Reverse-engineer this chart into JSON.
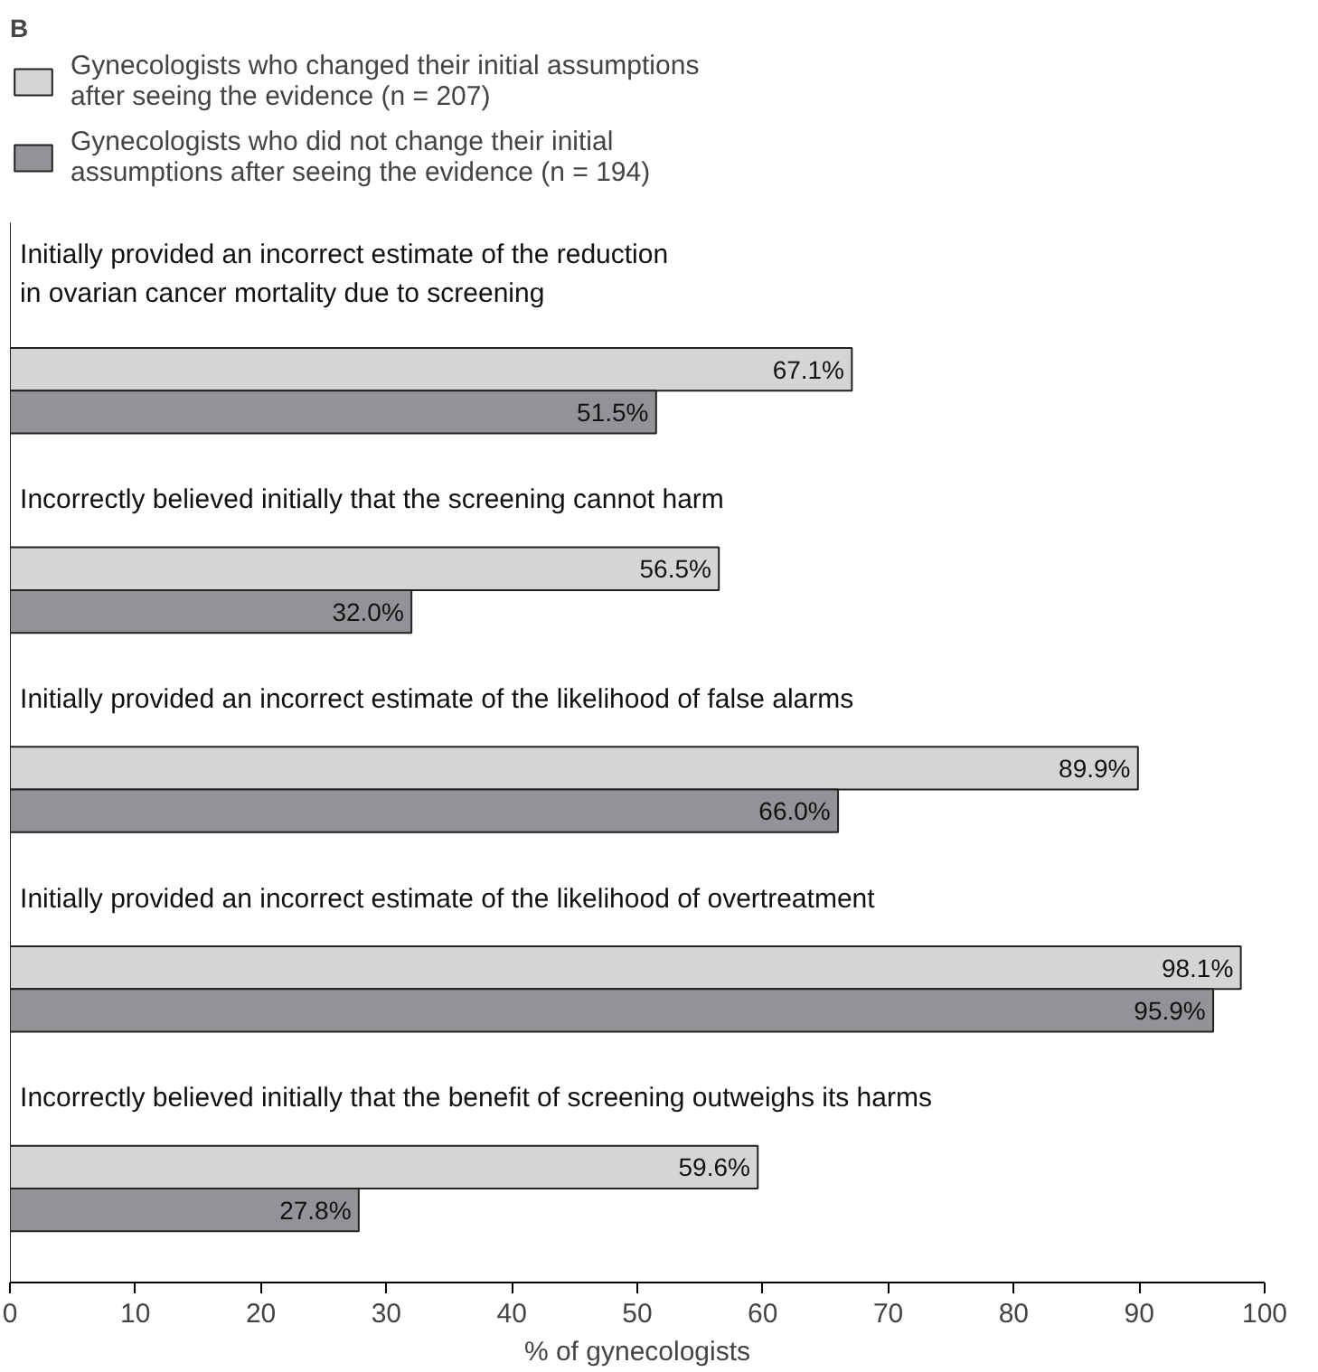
{
  "chart_data": {
    "type": "bar",
    "orientation": "horizontal",
    "title": "B",
    "xlabel": "% of gynecologists",
    "categories": [
      "Initially provided an incorrect estimate of the reduction\nin ovarian cancer mortality due to screening",
      "Incorrectly believed initially that the screening cannot harm",
      "Initially provided an incorrect estimate of the likelihood of false alarms",
      "Initially provided an incorrect estimate of the likelihood of overtreatment",
      "Incorrectly believed initially that the benefit of screening outweighs its harms"
    ],
    "series": [
      {
        "name": "Gynecologists who changed their initial assumptions after seeing the evidence (n = 207)",
        "color": "#d4d5d7",
        "values": [
          67.1,
          56.5,
          89.9,
          98.1,
          59.6
        ],
        "value_labels": [
          "67.1%",
          "56.5%",
          "89.9%",
          "98.1%",
          "59.6%"
        ]
      },
      {
        "name": "Gynecologists who did not change their initial assumptions after seeing the evidence (n = 194)",
        "color": "#929396",
        "values": [
          51.5,
          32.0,
          66.0,
          95.9,
          27.8
        ],
        "value_labels": [
          "51.5%",
          "32.0%",
          "66.0%",
          "95.9%",
          "27.8%"
        ]
      }
    ],
    "xlim": [
      0,
      100
    ],
    "xticks": [
      0,
      10,
      20,
      30,
      40,
      50,
      60,
      70,
      80,
      90,
      100
    ],
    "grid": false,
    "legend": "top left"
  }
}
